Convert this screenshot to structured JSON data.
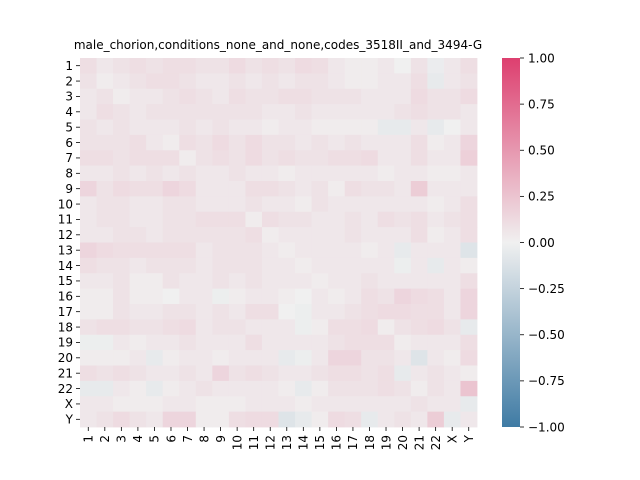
{
  "chart_data": {
    "type": "heatmap",
    "title": "male_chorion,conditions_none_and_none,codes_3518II_and_3494-G",
    "xlabel": "",
    "ylabel": "",
    "rows": [
      "1",
      "2",
      "3",
      "4",
      "5",
      "6",
      "7",
      "8",
      "9",
      "10",
      "11",
      "12",
      "13",
      "14",
      "15",
      "16",
      "17",
      "18",
      "19",
      "20",
      "21",
      "22",
      "X",
      "Y"
    ],
    "cols": [
      "1",
      "2",
      "3",
      "4",
      "5",
      "6",
      "7",
      "8",
      "9",
      "10",
      "11",
      "12",
      "13",
      "14",
      "15",
      "16",
      "17",
      "18",
      "19",
      "20",
      "21",
      "22",
      "X",
      "Y"
    ],
    "vmin": -1.0,
    "vmax": 1.0,
    "colormap": {
      "low": "#3f7ba4",
      "mid": "#f0f0f0",
      "high": "#dd3f6f"
    },
    "colorbar_ticks": [
      "1.00",
      "0.75",
      "0.50",
      "0.25",
      "0.00",
      "−0.25",
      "−0.50",
      "−0.75",
      "−1.00"
    ],
    "colorbar_values": [
      1.0,
      0.75,
      0.5,
      0.25,
      0.0,
      -0.25,
      -0.5,
      -0.75,
      -1.0
    ],
    "values": [
      [
        0.1,
        0.05,
        0.08,
        0.1,
        0.08,
        0.1,
        0.1,
        0.08,
        0.08,
        0.12,
        0.08,
        0.1,
        0.08,
        0.12,
        0.1,
        0.05,
        0.02,
        0.02,
        0.05,
        0.0,
        0.08,
        -0.03,
        0.05,
        0.1
      ],
      [
        0.08,
        0.02,
        0.05,
        0.08,
        0.1,
        0.1,
        0.08,
        0.05,
        0.05,
        0.08,
        0.05,
        0.08,
        0.05,
        0.08,
        0.08,
        0.05,
        0.02,
        0.02,
        0.05,
        0.05,
        0.1,
        -0.05,
        0.05,
        0.08
      ],
      [
        0.05,
        0.08,
        0.02,
        0.05,
        0.05,
        0.08,
        0.1,
        0.08,
        0.05,
        0.1,
        0.08,
        0.08,
        0.1,
        0.1,
        0.08,
        0.08,
        0.08,
        0.05,
        0.05,
        0.05,
        0.12,
        0.08,
        0.08,
        0.12
      ],
      [
        0.05,
        0.1,
        0.08,
        0.05,
        0.08,
        0.08,
        0.08,
        0.08,
        0.08,
        0.08,
        0.08,
        0.05,
        0.05,
        0.08,
        0.05,
        0.05,
        0.05,
        0.05,
        0.05,
        0.08,
        0.1,
        0.08,
        0.08,
        0.05
      ],
      [
        0.08,
        0.05,
        0.08,
        0.05,
        0.05,
        0.05,
        0.08,
        0.05,
        0.08,
        0.05,
        0.05,
        0.02,
        0.05,
        0.05,
        0.02,
        0.02,
        0.02,
        0.02,
        -0.05,
        -0.05,
        0.05,
        -0.05,
        0.0,
        0.05
      ],
      [
        0.08,
        0.08,
        0.08,
        0.1,
        0.05,
        0.02,
        0.1,
        0.08,
        0.12,
        0.08,
        0.12,
        0.08,
        0.08,
        0.05,
        0.08,
        0.05,
        0.08,
        0.05,
        0.05,
        0.05,
        0.1,
        0.02,
        0.05,
        0.15
      ],
      [
        0.1,
        0.1,
        0.08,
        0.1,
        0.1,
        0.1,
        0.02,
        0.08,
        0.1,
        0.08,
        0.12,
        0.08,
        0.1,
        0.08,
        0.08,
        0.1,
        0.1,
        0.12,
        0.05,
        0.05,
        0.1,
        0.05,
        0.05,
        0.18
      ],
      [
        0.05,
        0.05,
        0.08,
        0.05,
        0.08,
        0.05,
        0.08,
        0.05,
        0.05,
        0.08,
        0.05,
        0.05,
        0.02,
        0.05,
        0.05,
        0.05,
        0.05,
        0.05,
        0.02,
        0.05,
        0.05,
        0.02,
        0.02,
        0.05
      ],
      [
        0.15,
        0.08,
        0.12,
        0.1,
        0.1,
        0.15,
        0.12,
        0.05,
        0.05,
        0.05,
        0.1,
        0.1,
        0.08,
        0.05,
        0.08,
        0.02,
        0.1,
        0.08,
        0.08,
        0.05,
        0.2,
        0.05,
        0.05,
        0.05
      ],
      [
        0.05,
        0.08,
        0.08,
        0.05,
        0.05,
        0.08,
        0.08,
        0.05,
        0.05,
        0.05,
        0.08,
        0.05,
        0.05,
        0.02,
        0.08,
        0.05,
        0.05,
        0.05,
        0.05,
        0.05,
        0.05,
        0.02,
        0.05,
        0.1
      ],
      [
        0.05,
        0.08,
        0.08,
        0.05,
        0.05,
        0.08,
        0.08,
        0.1,
        0.1,
        0.1,
        0.02,
        0.1,
        0.08,
        0.08,
        0.05,
        0.05,
        0.08,
        0.05,
        0.1,
        0.08,
        0.1,
        0.05,
        0.08,
        0.1
      ],
      [
        0.05,
        0.05,
        0.08,
        0.08,
        0.05,
        0.08,
        0.08,
        0.08,
        0.08,
        0.08,
        0.1,
        0.02,
        0.05,
        0.05,
        0.05,
        0.05,
        0.08,
        0.05,
        0.05,
        0.05,
        0.1,
        0.02,
        0.05,
        0.1
      ],
      [
        0.15,
        0.12,
        0.1,
        0.1,
        0.1,
        0.1,
        0.1,
        0.05,
        0.08,
        0.08,
        0.08,
        0.05,
        0.02,
        0.05,
        0.05,
        0.05,
        0.05,
        0.02,
        0.05,
        -0.05,
        0.05,
        0.05,
        0.05,
        -0.1
      ],
      [
        0.1,
        0.08,
        0.08,
        0.05,
        0.08,
        0.08,
        0.08,
        0.05,
        0.08,
        0.08,
        0.08,
        0.05,
        0.05,
        0.02,
        0.05,
        0.05,
        0.05,
        0.05,
        0.05,
        -0.02,
        0.05,
        -0.05,
        0.05,
        0.02
      ],
      [
        0.05,
        0.05,
        0.08,
        0.02,
        0.02,
        0.08,
        0.05,
        0.05,
        0.08,
        0.05,
        0.08,
        0.05,
        0.05,
        0.05,
        0.02,
        0.05,
        0.05,
        0.08,
        0.05,
        0.05,
        0.05,
        0.05,
        0.05,
        0.1
      ],
      [
        0.02,
        0.02,
        0.08,
        0.02,
        0.02,
        0.0,
        0.05,
        0.05,
        -0.02,
        0.02,
        0.05,
        0.05,
        0.02,
        0.0,
        0.05,
        0.02,
        0.05,
        0.1,
        0.08,
        0.15,
        0.12,
        0.1,
        0.05,
        0.15
      ],
      [
        0.02,
        0.02,
        0.08,
        0.05,
        0.05,
        0.08,
        0.08,
        0.05,
        0.08,
        0.05,
        0.1,
        0.1,
        0.0,
        -0.02,
        0.05,
        0.05,
        0.08,
        0.1,
        0.12,
        0.12,
        0.1,
        0.1,
        0.05,
        0.15
      ],
      [
        0.08,
        0.1,
        0.1,
        0.08,
        0.08,
        0.1,
        0.12,
        0.05,
        0.08,
        0.08,
        0.05,
        0.05,
        0.05,
        -0.02,
        0.02,
        0.1,
        0.1,
        0.12,
        0.02,
        0.08,
        0.1,
        0.12,
        0.08,
        -0.05
      ],
      [
        -0.02,
        -0.02,
        0.05,
        0.02,
        0.05,
        0.05,
        0.08,
        0.05,
        0.05,
        0.05,
        0.1,
        0.05,
        0.05,
        0.05,
        0.05,
        0.08,
        0.1,
        0.1,
        0.1,
        0.02,
        0.05,
        0.05,
        0.05,
        0.1
      ],
      [
        0.02,
        0.02,
        0.02,
        0.05,
        -0.05,
        0.02,
        0.05,
        0.05,
        0.02,
        0.05,
        0.05,
        0.05,
        -0.05,
        -0.02,
        0.05,
        0.15,
        0.15,
        0.08,
        0.08,
        0.05,
        -0.1,
        0.05,
        0.02,
        0.12
      ],
      [
        0.1,
        0.08,
        0.1,
        0.08,
        0.05,
        0.05,
        0.08,
        0.05,
        0.15,
        0.08,
        0.1,
        0.08,
        0.05,
        0.05,
        0.08,
        0.1,
        0.1,
        0.08,
        0.1,
        -0.05,
        0.05,
        0.08,
        0.05,
        0.02
      ],
      [
        -0.05,
        -0.05,
        0.05,
        0.02,
        -0.05,
        0.02,
        0.05,
        0.08,
        0.05,
        0.05,
        0.05,
        0.05,
        0.02,
        -0.05,
        0.02,
        0.08,
        0.08,
        0.08,
        0.1,
        0.08,
        0.02,
        0.08,
        0.05,
        0.25
      ],
      [
        0.05,
        0.05,
        0.02,
        0.02,
        0.02,
        0.05,
        0.05,
        0.02,
        0.02,
        0.02,
        0.05,
        0.05,
        0.05,
        0.02,
        0.05,
        0.05,
        0.05,
        0.05,
        0.05,
        0.05,
        0.08,
        0.05,
        0.05,
        -0.05
      ],
      [
        0.05,
        0.08,
        0.12,
        0.08,
        0.05,
        0.15,
        0.15,
        0.02,
        0.02,
        0.1,
        0.12,
        0.12,
        -0.1,
        -0.05,
        0.02,
        0.12,
        0.1,
        -0.05,
        0.05,
        0.08,
        0.05,
        0.2,
        -0.05,
        0.05
      ]
    ]
  }
}
